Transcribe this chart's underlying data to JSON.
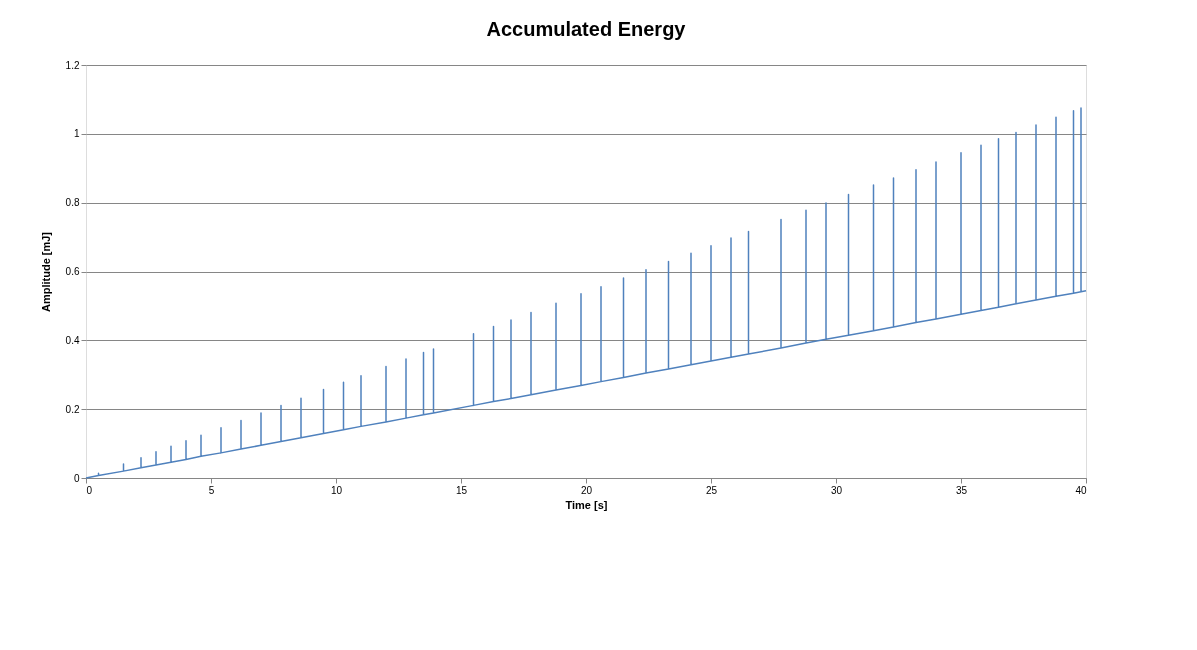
{
  "chart_data": {
    "type": "line",
    "title": "Accumulated Energy",
    "xlabel": "Time [s]",
    "ylabel": "Amplitude [mJ]",
    "xlim": [
      0,
      40
    ],
    "xticks": [
      0,
      5,
      10,
      15,
      20,
      25,
      30,
      35,
      40
    ],
    "ylim": [
      0,
      1.2
    ],
    "yticks": [
      0,
      0.2,
      0.4,
      0.6,
      0.8,
      1,
      1.2
    ],
    "grid": "y",
    "legend": false,
    "marker": "none",
    "line_style": "solid",
    "series": [
      {
        "color": "#4f81bd",
        "x": [
          0,
          0.5,
          0.5,
          0.5,
          1.5,
          1.5,
          1.5,
          2.2,
          2.2,
          2.2,
          2.8,
          2.8,
          2.8,
          3.4,
          3.4,
          3.4,
          4.0,
          4.0,
          4.0,
          4.6,
          4.6,
          4.6,
          5.4,
          5.4,
          5.4,
          6.2,
          6.2,
          6.2,
          7.0,
          7.0,
          7.0,
          7.8,
          7.8,
          7.8,
          8.6,
          8.6,
          8.6,
          9.5,
          9.5,
          9.5,
          10.3,
          10.3,
          10.3,
          11.0,
          11.0,
          11.0,
          12.0,
          12.0,
          12.0,
          12.8,
          12.8,
          12.8,
          13.5,
          13.5,
          13.5,
          13.9,
          13.9,
          13.9,
          15.5,
          15.5,
          15.5,
          16.3,
          16.3,
          16.3,
          17.0,
          17.0,
          17.0,
          17.8,
          17.8,
          17.8,
          18.8,
          18.8,
          18.8,
          19.8,
          19.8,
          19.8,
          20.6,
          20.6,
          20.6,
          21.5,
          21.5,
          21.5,
          22.4,
          22.4,
          22.4,
          23.3,
          23.3,
          23.3,
          24.2,
          24.2,
          24.2,
          25.0,
          25.0,
          25.0,
          25.8,
          25.8,
          25.8,
          26.5,
          26.5,
          26.5,
          27.8,
          27.8,
          27.8,
          28.8,
          28.8,
          28.8,
          29.6,
          29.6,
          29.6,
          30.5,
          30.5,
          30.5,
          31.5,
          31.5,
          31.5,
          32.3,
          32.3,
          32.3,
          33.2,
          33.2,
          33.2,
          34.0,
          34.0,
          34.0,
          35.0,
          35.0,
          35.0,
          35.8,
          35.8,
          35.8,
          36.5,
          36.5,
          36.5,
          37.2,
          37.2,
          37.2,
          38.0,
          38.0,
          38.0,
          38.8,
          38.8,
          38.8,
          39.5,
          39.5,
          39.5,
          39.8,
          39.8,
          39.8,
          40
        ],
        "values": [
          0,
          0.007,
          0.014,
          0.007,
          0.02,
          0.041,
          0.02,
          0.03,
          0.059,
          0.03,
          0.038,
          0.076,
          0.038,
          0.046,
          0.092,
          0.046,
          0.054,
          0.108,
          0.054,
          0.063,
          0.124,
          0.063,
          0.073,
          0.146,
          0.073,
          0.084,
          0.167,
          0.084,
          0.095,
          0.189,
          0.095,
          0.106,
          0.211,
          0.106,
          0.117,
          0.232,
          0.117,
          0.129,
          0.257,
          0.129,
          0.14,
          0.278,
          0.14,
          0.15,
          0.297,
          0.15,
          0.163,
          0.324,
          0.163,
          0.174,
          0.346,
          0.174,
          0.184,
          0.365,
          0.184,
          0.189,
          0.375,
          0.189,
          0.211,
          0.419,
          0.211,
          0.222,
          0.44,
          0.222,
          0.231,
          0.459,
          0.231,
          0.242,
          0.481,
          0.242,
          0.256,
          0.508,
          0.256,
          0.269,
          0.535,
          0.269,
          0.28,
          0.556,
          0.28,
          0.292,
          0.581,
          0.292,
          0.305,
          0.605,
          0.305,
          0.317,
          0.629,
          0.317,
          0.329,
          0.653,
          0.329,
          0.34,
          0.675,
          0.34,
          0.351,
          0.697,
          0.351,
          0.36,
          0.716,
          0.36,
          0.378,
          0.751,
          0.378,
          0.392,
          0.778,
          0.392,
          0.403,
          0.799,
          0.403,
          0.415,
          0.824,
          0.415,
          0.428,
          0.851,
          0.428,
          0.439,
          0.872,
          0.439,
          0.452,
          0.896,
          0.452,
          0.462,
          0.918,
          0.462,
          0.476,
          0.945,
          0.476,
          0.487,
          0.967,
          0.487,
          0.496,
          0.986,
          0.496,
          0.506,
          1.004,
          0.506,
          0.517,
          1.026,
          0.517,
          0.528,
          1.048,
          0.528,
          0.537,
          1.067,
          0.537,
          0.541,
          1.075,
          0.541,
          0.544
        ]
      }
    ]
  }
}
